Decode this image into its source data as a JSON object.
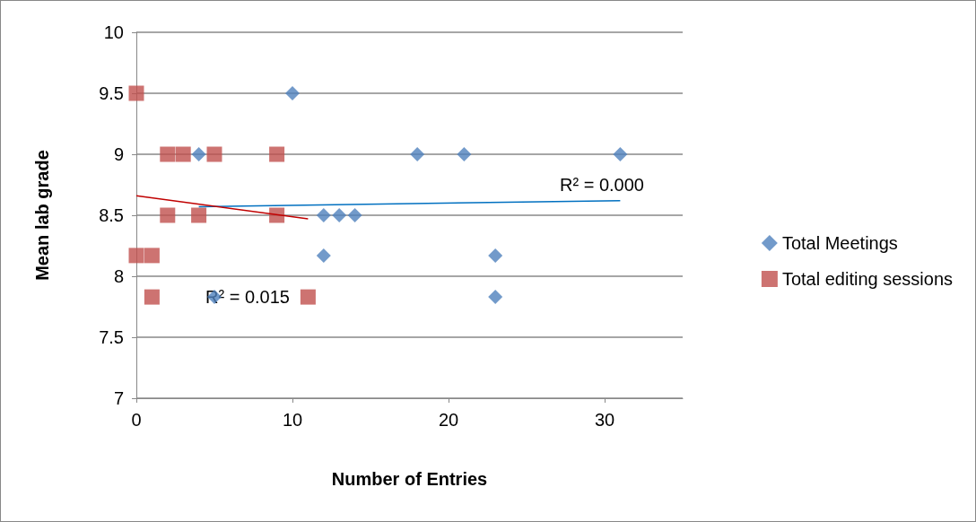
{
  "chart_data": {
    "type": "scatter",
    "xlabel": "Number of Entries",
    "ylabel": "Mean lab grade",
    "xlim": [
      0,
      35
    ],
    "xticks": [
      0,
      10,
      20,
      30
    ],
    "ylim": [
      7,
      10
    ],
    "yticks": [
      7,
      7.5,
      8,
      8.5,
      9,
      9.5,
      10
    ],
    "grid": "y",
    "legend": "right",
    "series": [
      {
        "name": "Total Meetings",
        "color": "#4f81bd",
        "marker": "diamond",
        "x": [
          4,
          10,
          18,
          21,
          31,
          12,
          13,
          14,
          12,
          23,
          23,
          5
        ],
        "values": [
          9,
          9.5,
          9,
          9,
          9,
          8.5,
          8.5,
          8.5,
          8.17,
          8.17,
          7.83,
          7.83
        ]
      },
      {
        "name": "Total editing sessions",
        "color": "#c0504d",
        "marker": "square",
        "x": [
          0,
          0,
          1,
          1,
          2,
          3,
          5,
          9,
          2,
          4,
          9,
          11
        ],
        "values": [
          9.5,
          8.17,
          8.17,
          7.83,
          9,
          9,
          9,
          9,
          8.5,
          8.5,
          8.5,
          7.83
        ]
      },
      {
        "type": "line",
        "color": "#0070c0",
        "marker": "none",
        "x": [
          4,
          31
        ],
        "values": [
          8.57,
          8.62
        ]
      },
      {
        "type": "line",
        "color": "#c00000",
        "marker": "none",
        "x": [
          0,
          11
        ],
        "values": [
          8.66,
          8.47
        ]
      }
    ],
    "annotations": [
      "R² = 0.000",
      "R² = 0.015"
    ]
  }
}
